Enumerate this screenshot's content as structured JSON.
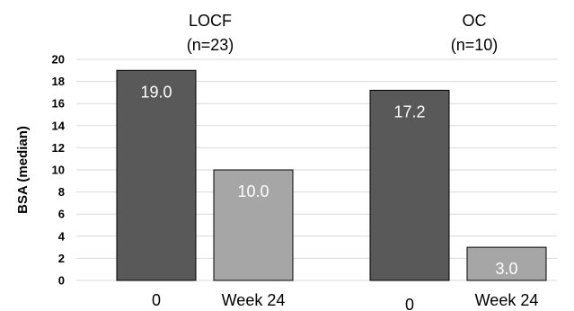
{
  "chart_data": {
    "type": "bar",
    "ylabel": "BSA (median)",
    "ylim": [
      0,
      20
    ],
    "yticks": [
      0,
      2,
      4,
      6,
      8,
      10,
      12,
      14,
      16,
      18,
      20
    ],
    "grid": true,
    "legend": "none",
    "groups": [
      {
        "title_line1": "LOCF",
        "title_line2": "(n=23)",
        "bars": [
          {
            "category": "0",
            "value": 19.0,
            "label": "19.0",
            "color": "#595959"
          },
          {
            "category": "Week 24",
            "value": 10.0,
            "label": "10.0",
            "color": "#a6a6a6"
          }
        ]
      },
      {
        "title_line1": "OC",
        "title_line2": "(n=10)",
        "bars": [
          {
            "category": "0",
            "value": 17.2,
            "label": "17.2",
            "color": "#595959"
          },
          {
            "category": "Week 24",
            "value": 3.0,
            "label": "3.0",
            "color": "#a6a6a6"
          }
        ]
      }
    ]
  }
}
